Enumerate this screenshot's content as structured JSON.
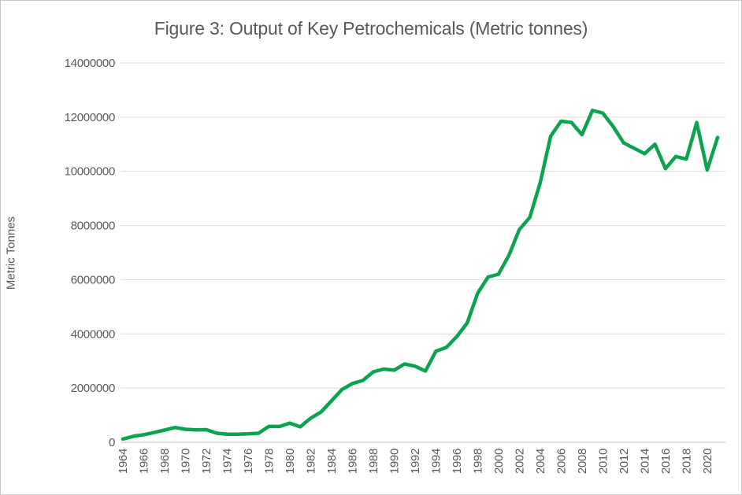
{
  "chart_data": {
    "type": "line",
    "title": "Figure 3: Output of Key Petrochemicals (Metric tonnes)",
    "xlabel": "",
    "ylabel": "Metric Tonnes",
    "ylim": [
      0,
      14000000
    ],
    "grid": true,
    "legend": "none",
    "line_color": "#0ca350",
    "gridline_color": "#d9d9d9",
    "axis_line_color": "#bfbfbf",
    "label_color": "#595959",
    "y_ticks": [
      0,
      2000000,
      4000000,
      6000000,
      8000000,
      10000000,
      12000000,
      14000000
    ],
    "x_tick_labels": [
      "1964",
      "1966",
      "1968",
      "1970",
      "1972",
      "1974",
      "1976",
      "1978",
      "1980",
      "1982",
      "1984",
      "1986",
      "1988",
      "1990",
      "1992",
      "1994",
      "1996",
      "1998",
      "2000",
      "2002",
      "2004",
      "2006",
      "2008",
      "2010",
      "2012",
      "2014",
      "2016",
      "2018",
      "2020"
    ],
    "x": [
      1964,
      1965,
      1966,
      1967,
      1968,
      1969,
      1970,
      1971,
      1972,
      1973,
      1974,
      1975,
      1976,
      1977,
      1978,
      1979,
      1980,
      1981,
      1982,
      1983,
      1984,
      1985,
      1986,
      1987,
      1988,
      1989,
      1990,
      1991,
      1992,
      1993,
      1994,
      1995,
      1996,
      1997,
      1998,
      1999,
      2000,
      2001,
      2002,
      2003,
      2004,
      2005,
      2006,
      2007,
      2008,
      2009,
      2010,
      2011,
      2012,
      2013,
      2014,
      2015,
      2016,
      2017,
      2018,
      2019,
      2020,
      2021
    ],
    "series": [
      {
        "name": "Output of Key Petrochemicals",
        "values": [
          120000,
          220000,
          280000,
          360000,
          450000,
          545000,
          480000,
          455000,
          465000,
          335000,
          300000,
          300000,
          310000,
          335000,
          590000,
          580000,
          710000,
          570000,
          890000,
          1120000,
          1530000,
          1950000,
          2170000,
          2280000,
          2600000,
          2700000,
          2660000,
          2890000,
          2810000,
          2630000,
          3360000,
          3500000,
          3900000,
          4400000,
          5500000,
          6100000,
          6200000,
          6900000,
          7850000,
          8300000,
          9580000,
          11300000,
          11850000,
          11800000,
          11350000,
          12250000,
          12150000,
          11650000,
          11050000,
          10850000,
          10650000,
          11000000,
          10100000,
          10550000,
          10450000,
          11800000,
          10050000,
          11250000
        ]
      }
    ]
  }
}
